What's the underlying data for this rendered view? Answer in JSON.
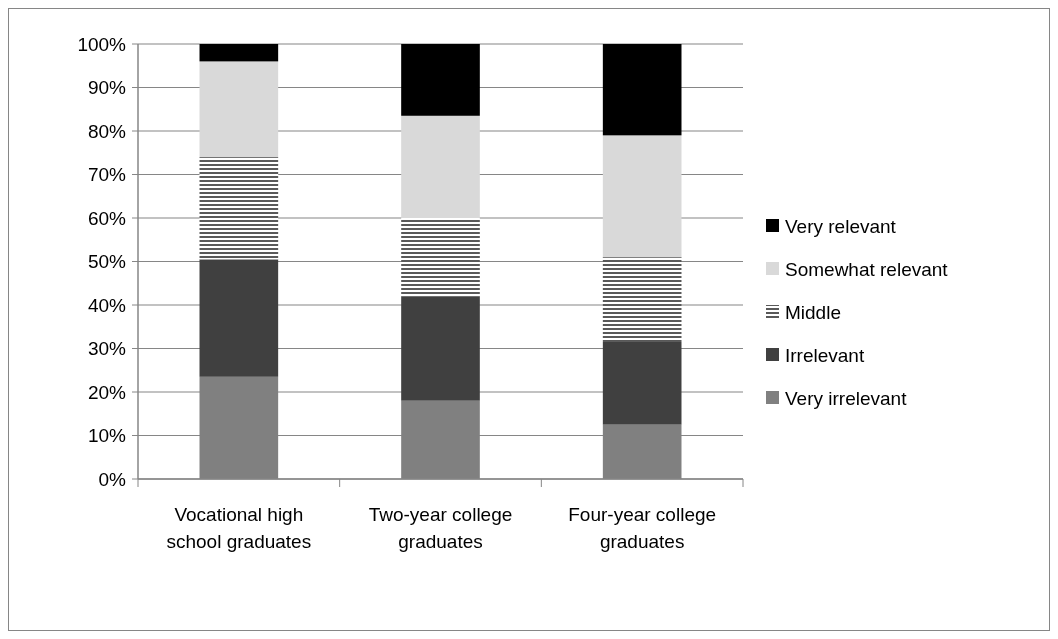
{
  "chart_data": {
    "type": "bar",
    "stacked": true,
    "categories": [
      "Vocational high school graduates",
      "Two-year college graduates",
      "Four-year college graduates"
    ],
    "series": [
      {
        "name": "Very irrelevant",
        "color": "#808080",
        "values": [
          23.5,
          18,
          12.5
        ]
      },
      {
        "name": "Irrelevant",
        "color": "#404040",
        "values": [
          27,
          24,
          19
        ]
      },
      {
        "name": "Middle",
        "color": "#595959",
        "values": [
          23.5,
          18,
          19.5
        ]
      },
      {
        "name": "Somewhat relevant",
        "color": "#d9d9d9",
        "values": [
          22,
          23.5,
          28
        ]
      },
      {
        "name": "Very relevant",
        "color": "#000000",
        "values": [
          4,
          16.5,
          21
        ]
      }
    ],
    "ylim": [
      0,
      100
    ],
    "yticks": [
      {
        "value": 0,
        "label": "0%"
      },
      {
        "value": 10,
        "label": "10%"
      },
      {
        "value": 20,
        "label": "20%"
      },
      {
        "value": 30,
        "label": "30%"
      },
      {
        "value": 40,
        "label": "40%"
      },
      {
        "value": 50,
        "label": "50%"
      },
      {
        "value": 60,
        "label": "60%"
      },
      {
        "value": 70,
        "label": "70%"
      },
      {
        "value": 80,
        "label": "80%"
      },
      {
        "value": 90,
        "label": "90%"
      },
      {
        "value": 100,
        "label": "100%"
      }
    ],
    "grid": "y",
    "legend": "right"
  }
}
